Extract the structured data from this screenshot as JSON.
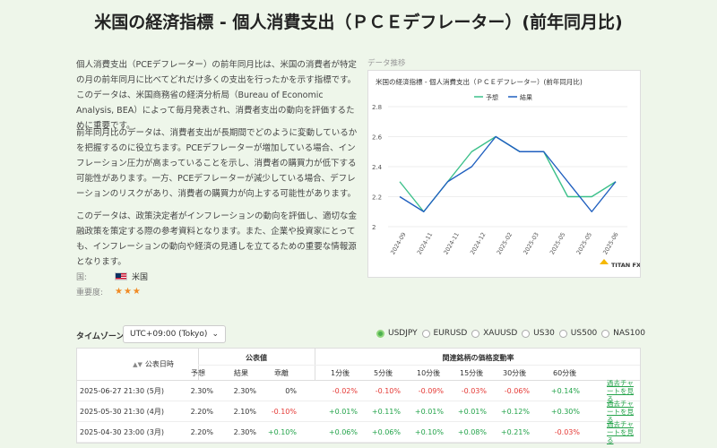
{
  "page_title": "米国の経済指標 - 個人消費支出（ＰＣＥデフレーター）(前年同月比)",
  "paragraphs": [
    "個人消費支出（PCEデフレーター）の前年同月比は、米国の消費者が特定の月の前年同月に比べてどれだけ多くの支出を行ったかを示す指標です。このデータは、米国商務省の経済分析局（Bureau of Economic Analysis, BEA）によって毎月発表され、消費者支出の動向を評価するために重要です。",
    "前年同月比のデータは、消費者支出が長期間でどのように変動しているかを把握するのに役立ちます。PCEデフレーターが増加している場合、インフレーション圧力が高まっていることを示し、消費者の購買力が低下する可能性があります。一方、PCEデフレーターが減少している場合、デフレーションのリスクがあり、消費者の購買力が向上する可能性があります。",
    "このデータは、政策決定者がインフレーションの動向を評価し、適切な金融政策を策定する際の参考資料となります。また、企業や投資家にとっても、インフレーションの動向や経済の見通しを立てるための重要な情報源となります。"
  ],
  "meta": {
    "country_label": "国:",
    "country_value": "米国",
    "importance_label": "重要度:",
    "importance_stars": "★★★",
    "importance_level": 3
  },
  "chart_caption": "データ推移",
  "chart_data": {
    "type": "line",
    "title": "米国の経済指標 - 個人消費支出（ＰＣＥデフレーター）(前年同月比)",
    "x": [
      "2024-09",
      "2024-10",
      "2024-11",
      "2024-12",
      "2025-01",
      "2025-02",
      "2025-03",
      "2025-04",
      "2025-05",
      "2025-06"
    ],
    "x_tick_labels": [
      "2024-09",
      "2024-11",
      "2024-11",
      "2024-12",
      "2025-02",
      "2025-03",
      "2025-05",
      "2025-05",
      "2025-06"
    ],
    "series": [
      {
        "name": "予想",
        "color": "#3cc08a",
        "values": [
          2.3,
          2.1,
          2.3,
          2.5,
          2.6,
          2.5,
          2.5,
          2.2,
          2.2,
          2.3
        ]
      },
      {
        "name": "結果",
        "color": "#1f5fbf",
        "values": [
          2.2,
          2.1,
          2.3,
          2.4,
          2.6,
          2.5,
          2.5,
          2.3,
          2.1,
          2.3
        ]
      }
    ],
    "y_ticks": [
      "2",
      "2.2",
      "2.4",
      "2.6",
      "2.8"
    ],
    "ylim": [
      2,
      2.8
    ],
    "legend": "top-left",
    "grid": "horizontal",
    "watermark": "TITAN FX"
  },
  "timezone": {
    "label": "タイムゾーン:",
    "value": "UTC+09:00 (Tokyo)",
    "arrow": "⌄"
  },
  "symbols": [
    {
      "label": "USDJPY",
      "selected": true
    },
    {
      "label": "EURUSD",
      "selected": false
    },
    {
      "label": "XAUUSD",
      "selected": false
    },
    {
      "label": "US30",
      "selected": false
    },
    {
      "label": "US500",
      "selected": false
    },
    {
      "label": "NAS100",
      "selected": false
    }
  ],
  "table": {
    "date_header": "公表日時",
    "sort_icon": "▲▼",
    "published_header": "公表値",
    "published_cols": [
      "予想",
      "結果",
      "乖離"
    ],
    "price_header": "関連銘柄の価格変動率",
    "price_cols": [
      "1分後",
      "5分後",
      "10分後",
      "15分後",
      "30分後",
      "60分後"
    ],
    "link_text": "過去チャートを見る",
    "rows": [
      {
        "date": "2025-06-27 21:30 (5月)",
        "forecast": "2.30%",
        "actual": "2.30%",
        "diff": "0%",
        "diff_sign": "neu",
        "changes": [
          [
            "-0.02%",
            "neg"
          ],
          [
            "-0.10%",
            "neg"
          ],
          [
            "-0.09%",
            "neg"
          ],
          [
            "-0.03%",
            "neg"
          ],
          [
            "-0.06%",
            "neg"
          ],
          [
            "+0.14%",
            "pos"
          ]
        ]
      },
      {
        "date": "2025-05-30 21:30 (4月)",
        "forecast": "2.20%",
        "actual": "2.10%",
        "diff": "-0.10%",
        "diff_sign": "neg",
        "changes": [
          [
            "+0.01%",
            "pos"
          ],
          [
            "+0.11%",
            "pos"
          ],
          [
            "+0.01%",
            "pos"
          ],
          [
            "+0.01%",
            "pos"
          ],
          [
            "+0.12%",
            "pos"
          ],
          [
            "+0.30%",
            "pos"
          ]
        ]
      },
      {
        "date": "2025-04-30 23:00 (3月)",
        "forecast": "2.20%",
        "actual": "2.30%",
        "diff": "+0.10%",
        "diff_sign": "pos",
        "changes": [
          [
            "+0.06%",
            "pos"
          ],
          [
            "+0.06%",
            "pos"
          ],
          [
            "+0.10%",
            "pos"
          ],
          [
            "+0.08%",
            "pos"
          ],
          [
            "+0.21%",
            "pos"
          ],
          [
            "-0.03%",
            "neg"
          ]
        ]
      }
    ]
  }
}
